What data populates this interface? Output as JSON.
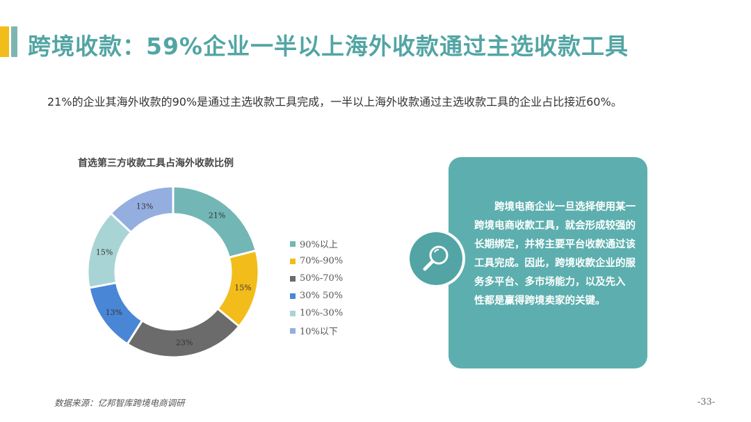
{
  "page": {
    "title": "跨境收款：59%企业一半以上海外收款通过主选收款工具",
    "subtitle": "21%的企业其海外收款的90%是通过主选收款工具完成，一半以上海外收款通过主选收款工具的企业占比接近60%。",
    "source": "数据来源：亿邦智库跨境电商调研",
    "page_number": "-33-"
  },
  "colors": {
    "accent_yellow": "#F2BD1A",
    "title_teal": "#52A5A4",
    "callout_bg": "#5CAFAE"
  },
  "chart_data": {
    "type": "pie",
    "subtype": "donut",
    "title": "首选第三方收款工具占海外收款比例",
    "legend_position": "right",
    "labels": [
      "90%以上",
      "70%-90%",
      "50%-70%",
      "30% 50%",
      "10%-30%",
      "10%以下"
    ],
    "values": [
      21,
      15,
      23,
      13,
      15,
      13
    ],
    "data_labels": [
      "21%",
      "15%",
      "23%",
      "13%",
      "15%",
      "13%"
    ],
    "colors": [
      "#72B6B5",
      "#F2BD1A",
      "#6B6B6B",
      "#4A86D6",
      "#A9D4D6",
      "#94AEE0"
    ]
  },
  "callout": {
    "icon": "magnifier-icon",
    "text": "跨境电商企业一旦选择使用某一跨境电商收款工具，就会形成较强的长期绑定，并将主要平台收款通过该工具完成。因此，跨境收款企业的服务多平台、多市场能力，以及先入 性都是赢得跨境卖家的关键。"
  }
}
